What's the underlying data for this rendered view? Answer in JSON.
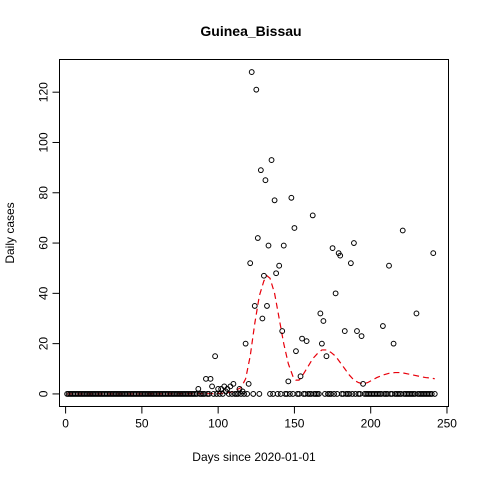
{
  "chart_data": {
    "type": "scatter",
    "title": "Guinea_Bissau",
    "xlabel": "Days since 2020-01-01",
    "ylabel": "Daily cases",
    "xlim": [
      -4,
      251
    ],
    "ylim": [
      -5,
      133
    ],
    "xticks": [
      0,
      50,
      100,
      150,
      200,
      250
    ],
    "yticks": [
      0,
      20,
      40,
      60,
      80,
      100,
      120
    ],
    "grid": false,
    "legend": "none",
    "series": [
      {
        "name": "daily_cases",
        "style": "open-circle",
        "color": "#000000",
        "points": [
          [
            1,
            0
          ],
          [
            2,
            0
          ],
          [
            3,
            0
          ],
          [
            4,
            0
          ],
          [
            5,
            0
          ],
          [
            6,
            0
          ],
          [
            7,
            0
          ],
          [
            8,
            0
          ],
          [
            9,
            0
          ],
          [
            10,
            0
          ],
          [
            11,
            0
          ],
          [
            12,
            0
          ],
          [
            13,
            0
          ],
          [
            14,
            0
          ],
          [
            15,
            0
          ],
          [
            16,
            0
          ],
          [
            17,
            0
          ],
          [
            18,
            0
          ],
          [
            19,
            0
          ],
          [
            20,
            0
          ],
          [
            21,
            0
          ],
          [
            22,
            0
          ],
          [
            23,
            0
          ],
          [
            24,
            0
          ],
          [
            25,
            0
          ],
          [
            26,
            0
          ],
          [
            27,
            0
          ],
          [
            28,
            0
          ],
          [
            29,
            0
          ],
          [
            30,
            0
          ],
          [
            31,
            0
          ],
          [
            32,
            0
          ],
          [
            33,
            0
          ],
          [
            34,
            0
          ],
          [
            35,
            0
          ],
          [
            36,
            0
          ],
          [
            37,
            0
          ],
          [
            38,
            0
          ],
          [
            39,
            0
          ],
          [
            40,
            0
          ],
          [
            41,
            0
          ],
          [
            42,
            0
          ],
          [
            43,
            0
          ],
          [
            44,
            0
          ],
          [
            45,
            0
          ],
          [
            46,
            0
          ],
          [
            47,
            0
          ],
          [
            48,
            0
          ],
          [
            49,
            0
          ],
          [
            50,
            0
          ],
          [
            51,
            0
          ],
          [
            52,
            0
          ],
          [
            53,
            0
          ],
          [
            54,
            0
          ],
          [
            55,
            0
          ],
          [
            56,
            0
          ],
          [
            57,
            0
          ],
          [
            58,
            0
          ],
          [
            59,
            0
          ],
          [
            60,
            0
          ],
          [
            61,
            0
          ],
          [
            62,
            0
          ],
          [
            63,
            0
          ],
          [
            64,
            0
          ],
          [
            65,
            0
          ],
          [
            66,
            0
          ],
          [
            67,
            0
          ],
          [
            68,
            0
          ],
          [
            69,
            0
          ],
          [
            70,
            0
          ],
          [
            71,
            0
          ],
          [
            72,
            0
          ],
          [
            73,
            0
          ],
          [
            74,
            0
          ],
          [
            75,
            0
          ],
          [
            76,
            0
          ],
          [
            77,
            0
          ],
          [
            78,
            0
          ],
          [
            79,
            0
          ],
          [
            80,
            0
          ],
          [
            81,
            0
          ],
          [
            82,
            0
          ],
          [
            83,
            0
          ],
          [
            84,
            0
          ],
          [
            85,
            0
          ],
          [
            86,
            0
          ],
          [
            87,
            2
          ],
          [
            88,
            0
          ],
          [
            89,
            0
          ],
          [
            90,
            0
          ],
          [
            91,
            0
          ],
          [
            92,
            6
          ],
          [
            93,
            0
          ],
          [
            94,
            0
          ],
          [
            95,
            6
          ],
          [
            96,
            3
          ],
          [
            97,
            0
          ],
          [
            98,
            15
          ],
          [
            99,
            0
          ],
          [
            100,
            2
          ],
          [
            101,
            0
          ],
          [
            102,
            2
          ],
          [
            103,
            0
          ],
          [
            104,
            3
          ],
          [
            105,
            1
          ],
          [
            106,
            2
          ],
          [
            107,
            0
          ],
          [
            108,
            3
          ],
          [
            109,
            0
          ],
          [
            110,
            4
          ],
          [
            111,
            0
          ],
          [
            112,
            0
          ],
          [
            113,
            0
          ],
          [
            114,
            2
          ],
          [
            115,
            0
          ],
          [
            116,
            1
          ],
          [
            117,
            0
          ],
          [
            118,
            20
          ],
          [
            119,
            0
          ],
          [
            120,
            4
          ],
          [
            121,
            52
          ],
          [
            122,
            128
          ],
          [
            123,
            0
          ],
          [
            124,
            35
          ],
          [
            125,
            121
          ],
          [
            126,
            62
          ],
          [
            127,
            0
          ],
          [
            128,
            89
          ],
          [
            129,
            30
          ],
          [
            130,
            47
          ],
          [
            131,
            85
          ],
          [
            132,
            35
          ],
          [
            133,
            59
          ],
          [
            134,
            0
          ],
          [
            135,
            93
          ],
          [
            136,
            0
          ],
          [
            137,
            77
          ],
          [
            138,
            48
          ],
          [
            139,
            0
          ],
          [
            140,
            51
          ],
          [
            141,
            0
          ],
          [
            142,
            25
          ],
          [
            143,
            59
          ],
          [
            144,
            0
          ],
          [
            145,
            0
          ],
          [
            146,
            5
          ],
          [
            147,
            0
          ],
          [
            148,
            78
          ],
          [
            149,
            0
          ],
          [
            150,
            66
          ],
          [
            151,
            17
          ],
          [
            152,
            0
          ],
          [
            153,
            0
          ],
          [
            154,
            7
          ],
          [
            155,
            22
          ],
          [
            156,
            0
          ],
          [
            157,
            0
          ],
          [
            158,
            21
          ],
          [
            159,
            0
          ],
          [
            160,
            0
          ],
          [
            161,
            0
          ],
          [
            162,
            71
          ],
          [
            163,
            0
          ],
          [
            164,
            0
          ],
          [
            165,
            0
          ],
          [
            166,
            0
          ],
          [
            167,
            32
          ],
          [
            168,
            20
          ],
          [
            169,
            29
          ],
          [
            170,
            0
          ],
          [
            171,
            15
          ],
          [
            172,
            0
          ],
          [
            173,
            0
          ],
          [
            174,
            0
          ],
          [
            175,
            58
          ],
          [
            176,
            0
          ],
          [
            177,
            40
          ],
          [
            178,
            0
          ],
          [
            179,
            56
          ],
          [
            180,
            55
          ],
          [
            181,
            0
          ],
          [
            182,
            0
          ],
          [
            183,
            25
          ],
          [
            184,
            0
          ],
          [
            185,
            0
          ],
          [
            186,
            0
          ],
          [
            187,
            52
          ],
          [
            188,
            0
          ],
          [
            189,
            60
          ],
          [
            190,
            0
          ],
          [
            191,
            25
          ],
          [
            192,
            0
          ],
          [
            193,
            0
          ],
          [
            194,
            23
          ],
          [
            195,
            4
          ],
          [
            196,
            0
          ],
          [
            197,
            0
          ],
          [
            198,
            0
          ],
          [
            199,
            0
          ],
          [
            200,
            0
          ],
          [
            201,
            0
          ],
          [
            202,
            0
          ],
          [
            203,
            0
          ],
          [
            204,
            0
          ],
          [
            205,
            0
          ],
          [
            206,
            0
          ],
          [
            207,
            0
          ],
          [
            208,
            27
          ],
          [
            209,
            0
          ],
          [
            210,
            0
          ],
          [
            211,
            0
          ],
          [
            212,
            51
          ],
          [
            213,
            0
          ],
          [
            214,
            0
          ],
          [
            215,
            20
          ],
          [
            216,
            0
          ],
          [
            217,
            0
          ],
          [
            218,
            0
          ],
          [
            219,
            0
          ],
          [
            220,
            0
          ],
          [
            221,
            65
          ],
          [
            222,
            0
          ],
          [
            223,
            0
          ],
          [
            224,
            0
          ],
          [
            225,
            0
          ],
          [
            226,
            0
          ],
          [
            227,
            0
          ],
          [
            228,
            0
          ],
          [
            229,
            0
          ],
          [
            230,
            32
          ],
          [
            231,
            0
          ],
          [
            232,
            0
          ],
          [
            233,
            0
          ],
          [
            234,
            0
          ],
          [
            235,
            0
          ],
          [
            236,
            0
          ],
          [
            237,
            0
          ],
          [
            238,
            0
          ],
          [
            239,
            0
          ],
          [
            240,
            0
          ],
          [
            241,
            56
          ],
          [
            242,
            0
          ]
        ]
      },
      {
        "name": "smoothed_trend",
        "style": "dashed-line",
        "color": "#e8000b",
        "points": [
          [
            1,
            0
          ],
          [
            50,
            0
          ],
          [
            95,
            0.1
          ],
          [
            105,
            0.3
          ],
          [
            110,
            1
          ],
          [
            115,
            2.5
          ],
          [
            118,
            6
          ],
          [
            121,
            15
          ],
          [
            124,
            28
          ],
          [
            127,
            39
          ],
          [
            130,
            45
          ],
          [
            132,
            47
          ],
          [
            134,
            46
          ],
          [
            137,
            40
          ],
          [
            140,
            30
          ],
          [
            143,
            20
          ],
          [
            146,
            12
          ],
          [
            149,
            7
          ],
          [
            151,
            5.5
          ],
          [
            153,
            5.5
          ],
          [
            155,
            7
          ],
          [
            157,
            9
          ],
          [
            159,
            11
          ],
          [
            162,
            14
          ],
          [
            165,
            16
          ],
          [
            168,
            17.5
          ],
          [
            171,
            17.5
          ],
          [
            174,
            16.5
          ],
          [
            177,
            15
          ],
          [
            180,
            12.5
          ],
          [
            183,
            10
          ],
          [
            186,
            7.5
          ],
          [
            189,
            5.5
          ],
          [
            192,
            4.5
          ],
          [
            195,
            4
          ],
          [
            198,
            4.5
          ],
          [
            201,
            5.5
          ],
          [
            204,
            6.5
          ],
          [
            208,
            7.5
          ],
          [
            212,
            8.2
          ],
          [
            216,
            8.5
          ],
          [
            220,
            8.5
          ],
          [
            224,
            8
          ],
          [
            228,
            7.5
          ],
          [
            232,
            7
          ],
          [
            236,
            6.5
          ],
          [
            240,
            6.3
          ],
          [
            242,
            6
          ]
        ]
      }
    ]
  }
}
